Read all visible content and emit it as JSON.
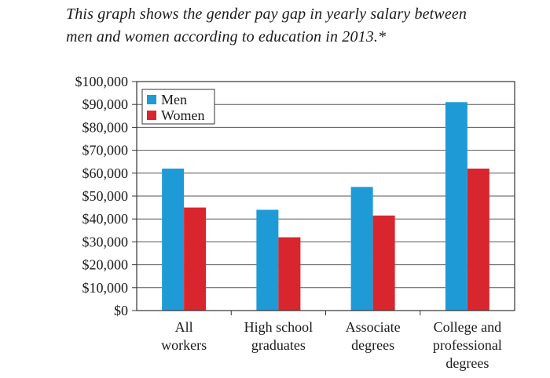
{
  "caption": {
    "line1": "This graph shows the gender pay gap in yearly salary between",
    "line2": "men and women according to education in 2013.*"
  },
  "chart_data": {
    "type": "bar",
    "title": "",
    "xlabel": "",
    "ylabel": "",
    "categories": [
      [
        "All",
        "workers"
      ],
      [
        "High school",
        "graduates"
      ],
      [
        "Associate",
        "degrees"
      ],
      [
        "College and",
        "professional",
        "degrees"
      ]
    ],
    "series": [
      {
        "name": "Men",
        "color": "#1e9bd7",
        "values": [
          62000,
          44000,
          54000,
          91000
        ]
      },
      {
        "name": "Women",
        "color": "#d9262e",
        "values": [
          45000,
          32000,
          41500,
          62000
        ]
      }
    ],
    "ylim": [
      0,
      100000
    ],
    "yticks": [
      {
        "value": 0,
        "label": "$0"
      },
      {
        "value": 10000,
        "label": "$10,000"
      },
      {
        "value": 20000,
        "label": "$20,000"
      },
      {
        "value": 30000,
        "label": "$30,000"
      },
      {
        "value": 40000,
        "label": "$40,000"
      },
      {
        "value": 50000,
        "label": "$50,000"
      },
      {
        "value": 60000,
        "label": "$60,000"
      },
      {
        "value": 70000,
        "label": "$70,000"
      },
      {
        "value": 80000,
        "label": "$80,000"
      },
      {
        "value": 90000,
        "label": "$90,000"
      },
      {
        "value": 100000,
        "label": "$100,000"
      }
    ],
    "grid": true,
    "legend": "top-left"
  }
}
